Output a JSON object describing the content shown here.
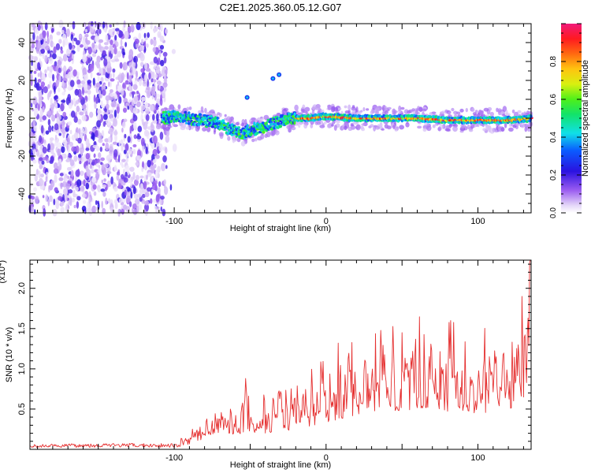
{
  "page_title": "C2E1.2025.360.05.12.G07",
  "chart_data": [
    {
      "type": "heatmap",
      "title": "C2E1.2025.360.05.12.G07",
      "xlabel": "Height of straight line (km)",
      "ylabel": "Frequency (Hz)",
      "xlim": [
        -195,
        135
      ],
      "ylim": [
        -50,
        50
      ],
      "x_ticks": [
        -100,
        0,
        100
      ],
      "y_ticks": [
        -40,
        -20,
        0,
        20,
        40
      ],
      "colorbar": {
        "label": "Normalized spectral amplitude",
        "range": [
          0,
          1
        ],
        "ticks": [
          0.0,
          0.2,
          0.4,
          0.6,
          0.8
        ]
      },
      "regions": [
        {
          "name": "noise",
          "x_range": [
            -195,
            -105
          ],
          "description_value": "uniform low-amplitude scatter across all frequencies"
        },
        {
          "name": "trace",
          "x_range": [
            -108,
            135
          ]
        }
      ],
      "trace_center_hz": [
        {
          "x": -108,
          "y": 0
        },
        {
          "x": -100,
          "y": 1
        },
        {
          "x": -90,
          "y": 0
        },
        {
          "x": -80,
          "y": -1
        },
        {
          "x": -70,
          "y": -3
        },
        {
          "x": -62,
          "y": -6
        },
        {
          "x": -55,
          "y": -8
        },
        {
          "x": -48,
          "y": -6
        },
        {
          "x": -40,
          "y": -4
        },
        {
          "x": -32,
          "y": -2
        },
        {
          "x": -22,
          "y": 0
        },
        {
          "x": -10,
          "y": 0
        },
        {
          "x": 0,
          "y": 1
        },
        {
          "x": 20,
          "y": 0
        },
        {
          "x": 40,
          "y": 0
        },
        {
          "x": 60,
          "y": 0
        },
        {
          "x": 80,
          "y": -1
        },
        {
          "x": 100,
          "y": -1
        },
        {
          "x": 120,
          "y": -1
        },
        {
          "x": 135,
          "y": 0
        }
      ],
      "outlier_blobs": [
        {
          "x": -52,
          "y": 11
        },
        {
          "x": -35,
          "y": 21
        },
        {
          "x": -31,
          "y": 23
        }
      ]
    },
    {
      "type": "line",
      "xlabel": "Height of straight line (km)",
      "ylabel": "SNR (10 * v/v)",
      "y_multiplier_label": "(x10",
      "y_multiplier_exp": "4",
      "multiplier_suffix": ")",
      "xlim": [
        -195,
        135
      ],
      "ylim": [
        0,
        2.35
      ],
      "x_ticks": [
        -100,
        0,
        100
      ],
      "y_ticks": [
        0.5,
        1.0,
        1.5,
        2.0
      ],
      "color": "#e53030",
      "series": [
        {
          "name": "SNR",
          "envelope": [
            {
              "x": -195,
              "y": 0.04
            },
            {
              "x": -150,
              "y": 0.05
            },
            {
              "x": -100,
              "y": 0.05
            },
            {
              "x": -92,
              "y": 0.12
            },
            {
              "x": -80,
              "y": 0.3
            },
            {
              "x": -60,
              "y": 0.42
            },
            {
              "x": -40,
              "y": 0.45
            },
            {
              "x": -20,
              "y": 0.55
            },
            {
              "x": 0,
              "y": 0.75
            },
            {
              "x": 20,
              "y": 0.95
            },
            {
              "x": 40,
              "y": 1.05
            },
            {
              "x": 60,
              "y": 1.1
            },
            {
              "x": 80,
              "y": 1.05
            },
            {
              "x": 100,
              "y": 1.0
            },
            {
              "x": 120,
              "y": 1.0
            },
            {
              "x": 128,
              "y": 1.2
            },
            {
              "x": 132,
              "y": 1.6
            },
            {
              "x": 135,
              "y": 2.3
            }
          ],
          "notable_peaks": [
            {
              "x": -53,
              "y": 0.88
            },
            {
              "x": 8,
              "y": 1.32
            },
            {
              "x": 50,
              "y": 1.45
            },
            {
              "x": 82,
              "y": 1.6
            },
            {
              "x": 129,
              "y": 1.9
            },
            {
              "x": 134,
              "y": 2.32
            }
          ]
        }
      ]
    }
  ]
}
